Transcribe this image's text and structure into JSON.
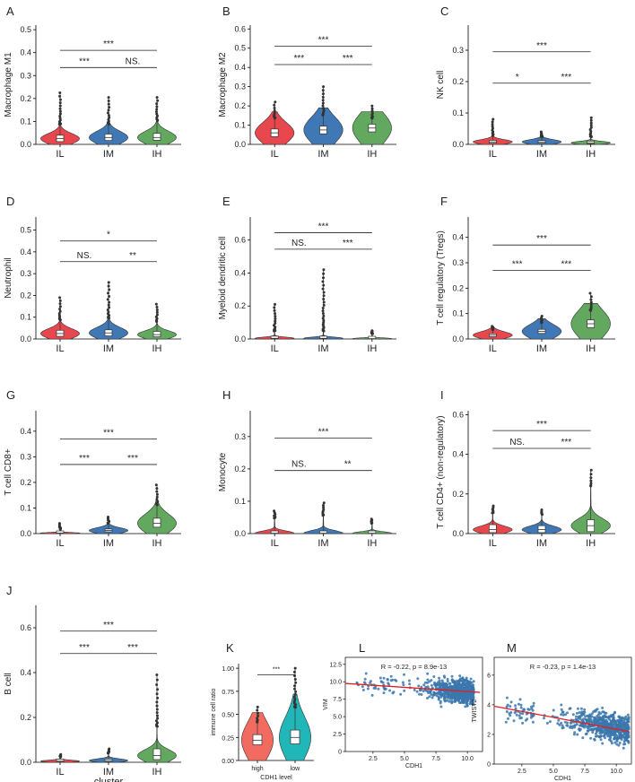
{
  "figure": {
    "panels": [
      {
        "letter": "A",
        "ylabel": "Macrophage M1"
      },
      {
        "letter": "B",
        "ylabel": "Macrophage M2"
      },
      {
        "letter": "C",
        "ylabel": "NK cell"
      },
      {
        "letter": "D",
        "ylabel": "Neutrophil"
      },
      {
        "letter": "E",
        "ylabel": "Myeloid dendritic cell"
      },
      {
        "letter": "F",
        "ylabel": "T cell regulatory (Tregs)"
      },
      {
        "letter": "G",
        "ylabel": "T cell CD8+"
      },
      {
        "letter": "H",
        "ylabel": "Monocyte"
      },
      {
        "letter": "I",
        "ylabel": "T cell CD4+ (non-regulatory)"
      },
      {
        "letter": "J",
        "ylabel": "B cell"
      },
      {
        "letter": "K",
        "ylabel": "immune cell ratio"
      },
      {
        "letter": "L",
        "ylabel": "VIM"
      },
      {
        "letter": "M",
        "ylabel": "TWIST2"
      }
    ]
  },
  "colors": {
    "IL": "#e8474d",
    "IM": "#3f78b4",
    "IH": "#63a85f",
    "high": "#f26b61",
    "low": "#21b6b8",
    "scatter": "#3a77ad",
    "fit": "#e02020"
  },
  "chart_data": [
    {
      "type": "violin",
      "panel": "A",
      "ylabel": "Macrophage M1",
      "xlabel": "",
      "categories": [
        "IL",
        "IM",
        "IH"
      ],
      "ylim": [
        0,
        0.52
      ],
      "yticks": [
        0,
        0.1,
        0.2,
        0.3,
        0.4,
        0.5
      ],
      "ytick_labels": [
        "0.0",
        "0.1",
        "0.2",
        "0.3",
        "0.4",
        "0.5"
      ],
      "medians": [
        0.025,
        0.03,
        0.03
      ],
      "q1": [
        0.012,
        0.017,
        0.018
      ],
      "q3": [
        0.04,
        0.045,
        0.048
      ],
      "maxima": [
        0.225,
        0.205,
        0.205
      ],
      "violin_max": [
        0.11,
        0.11,
        0.13
      ],
      "comparisons": [
        {
          "from": 0,
          "to": 2,
          "label": "***",
          "y": 0.41
        },
        {
          "from": 0,
          "to": 1,
          "label": "***",
          "y": 0.335
        },
        {
          "from": 1,
          "to": 2,
          "label": "NS.",
          "y": 0.335
        }
      ]
    },
    {
      "type": "violin",
      "panel": "B",
      "ylabel": "Macrophage M2",
      "xlabel": "",
      "categories": [
        "IL",
        "IM",
        "IH"
      ],
      "ylim": [
        0,
        0.62
      ],
      "yticks": [
        0,
        0.1,
        0.2,
        0.3,
        0.4,
        0.5,
        0.6
      ],
      "ytick_labels": [
        "0.0",
        "0.1",
        "0.2",
        "0.3",
        "0.4",
        "0.5",
        "0.6"
      ],
      "medians": [
        0.06,
        0.075,
        0.085
      ],
      "q1": [
        0.04,
        0.055,
        0.065
      ],
      "q3": [
        0.08,
        0.095,
        0.105
      ],
      "maxima": [
        0.22,
        0.3,
        0.2
      ],
      "violin_max": [
        0.17,
        0.19,
        0.17
      ],
      "comparisons": [
        {
          "from": 0,
          "to": 2,
          "label": "***",
          "y": 0.51
        },
        {
          "from": 0,
          "to": 1,
          "label": "***",
          "y": 0.415
        },
        {
          "from": 1,
          "to": 2,
          "label": "***",
          "y": 0.415
        }
      ]
    },
    {
      "type": "violin",
      "panel": "C",
      "ylabel": "NK cell",
      "xlabel": "",
      "categories": [
        "IL",
        "IM",
        "IH"
      ],
      "ylim": [
        0,
        0.38
      ],
      "yticks": [
        0,
        0.1,
        0.2,
        0.3
      ],
      "ytick_labels": [
        "0.0",
        "0.1",
        "0.2",
        "0.3"
      ],
      "medians": [
        0.008,
        0.008,
        0.005
      ],
      "q1": [
        0.004,
        0.004,
        0.002
      ],
      "q3": [
        0.013,
        0.012,
        0.009
      ],
      "maxima": [
        0.08,
        0.04,
        0.085
      ],
      "violin_max": [
        0.035,
        0.03,
        0.03
      ],
      "comparisons": [
        {
          "from": 0,
          "to": 2,
          "label": "***",
          "y": 0.295
        },
        {
          "from": 0,
          "to": 1,
          "label": "*",
          "y": 0.195
        },
        {
          "from": 1,
          "to": 2,
          "label": "***",
          "y": 0.195
        }
      ]
    },
    {
      "type": "violin",
      "panel": "D",
      "ylabel": "Neutrophil",
      "xlabel": "",
      "categories": [
        "IL",
        "IM",
        "IH"
      ],
      "ylim": [
        0,
        0.56
      ],
      "yticks": [
        0,
        0.1,
        0.2,
        0.3,
        0.4,
        0.5
      ],
      "ytick_labels": [
        "0.0",
        "0.1",
        "0.2",
        "0.3",
        "0.4",
        "0.5"
      ],
      "medians": [
        0.025,
        0.028,
        0.02
      ],
      "q1": [
        0.012,
        0.014,
        0.01
      ],
      "q3": [
        0.04,
        0.042,
        0.035
      ],
      "maxima": [
        0.19,
        0.26,
        0.16
      ],
      "violin_max": [
        0.11,
        0.12,
        0.1
      ],
      "comparisons": [
        {
          "from": 0,
          "to": 2,
          "label": "*",
          "y": 0.45
        },
        {
          "from": 0,
          "to": 1,
          "label": "NS.",
          "y": 0.355
        },
        {
          "from": 1,
          "to": 2,
          "label": "**",
          "y": 0.355
        }
      ]
    },
    {
      "type": "violin",
      "panel": "E",
      "ylabel": "Myeloid dendritic cell",
      "xlabel": "",
      "categories": [
        "IL",
        "IM",
        "IH"
      ],
      "ylim": [
        0,
        0.74
      ],
      "yticks": [
        0,
        0.2,
        0.4,
        0.6
      ],
      "ytick_labels": [
        "0.0",
        "0.2",
        "0.4",
        "0.6"
      ],
      "medians": [
        0.004,
        0.004,
        0.002
      ],
      "q1": [
        0.001,
        0.001,
        0.0
      ],
      "q3": [
        0.01,
        0.01,
        0.006
      ],
      "maxima": [
        0.21,
        0.42,
        0.05
      ],
      "violin_max": [
        0.06,
        0.06,
        0.04
      ],
      "comparisons": [
        {
          "from": 0,
          "to": 2,
          "label": "***",
          "y": 0.645
        },
        {
          "from": 0,
          "to": 1,
          "label": "NS.",
          "y": 0.545
        },
        {
          "from": 1,
          "to": 2,
          "label": "***",
          "y": 0.545
        }
      ]
    },
    {
      "type": "violin",
      "panel": "F",
      "ylabel": "T cell regulatory (Tregs)",
      "xlabel": "",
      "categories": [
        "IL",
        "IM",
        "IH"
      ],
      "ylim": [
        0,
        0.48
      ],
      "yticks": [
        0,
        0.1,
        0.2,
        0.3,
        0.4
      ],
      "ytick_labels": [
        "0.0",
        "0.1",
        "0.2",
        "0.3",
        "0.4"
      ],
      "medians": [
        0.015,
        0.03,
        0.06
      ],
      "q1": [
        0.009,
        0.022,
        0.045
      ],
      "q3": [
        0.021,
        0.038,
        0.075
      ],
      "maxima": [
        0.05,
        0.09,
        0.18
      ],
      "violin_max": [
        0.045,
        0.08,
        0.14
      ],
      "comparisons": [
        {
          "from": 0,
          "to": 2,
          "label": "***",
          "y": 0.37
        },
        {
          "from": 0,
          "to": 1,
          "label": "***",
          "y": 0.27
        },
        {
          "from": 1,
          "to": 2,
          "label": "***",
          "y": 0.27
        }
      ]
    },
    {
      "type": "violin",
      "panel": "G",
      "ylabel": "T cell CD8+",
      "xlabel": "",
      "categories": [
        "IL",
        "IM",
        "IH"
      ],
      "ylim": [
        0,
        0.48
      ],
      "yticks": [
        0,
        0.1,
        0.2,
        0.3,
        0.4
      ],
      "ytick_labels": [
        "0.0",
        "0.1",
        "0.2",
        "0.3",
        "0.4"
      ],
      "medians": [
        0.002,
        0.012,
        0.04
      ],
      "q1": [
        0.0,
        0.007,
        0.025
      ],
      "q3": [
        0.005,
        0.018,
        0.06
      ],
      "maxima": [
        0.04,
        0.065,
        0.19
      ],
      "violin_max": [
        0.02,
        0.05,
        0.14
      ],
      "comparisons": [
        {
          "from": 0,
          "to": 2,
          "label": "***",
          "y": 0.37
        },
        {
          "from": 0,
          "to": 1,
          "label": "***",
          "y": 0.27
        },
        {
          "from": 1,
          "to": 2,
          "label": "***",
          "y": 0.27
        }
      ]
    },
    {
      "type": "violin",
      "panel": "H",
      "ylabel": "Monocyte",
      "xlabel": "",
      "categories": [
        "IL",
        "IM",
        "IH"
      ],
      "ylim": [
        0,
        0.38
      ],
      "yticks": [
        0,
        0.1,
        0.2,
        0.3
      ],
      "ytick_labels": [
        "0.0",
        "0.1",
        "0.2",
        "0.3"
      ],
      "medians": [
        0.001,
        0.001,
        0.001
      ],
      "q1": [
        0.0,
        0.0,
        0.0
      ],
      "q3": [
        0.003,
        0.003,
        0.003
      ],
      "maxima": [
        0.07,
        0.095,
        0.045
      ],
      "violin_max": [
        0.06,
        0.07,
        0.04
      ],
      "comparisons": [
        {
          "from": 0,
          "to": 2,
          "label": "***",
          "y": 0.295
        },
        {
          "from": 0,
          "to": 1,
          "label": "NS.",
          "y": 0.195
        },
        {
          "from": 1,
          "to": 2,
          "label": "**",
          "y": 0.195
        }
      ]
    },
    {
      "type": "violin",
      "panel": "I",
      "ylabel": "T cell CD4+ (non-regulatory)",
      "xlabel": "",
      "categories": [
        "IL",
        "IM",
        "IH"
      ],
      "ylim": [
        0,
        0.62
      ],
      "yticks": [
        0,
        0.2,
        0.4,
        0.6
      ],
      "ytick_labels": [
        "0.0",
        "0.2",
        "0.4",
        "0.6"
      ],
      "medians": [
        0.02,
        0.02,
        0.04
      ],
      "q1": [
        0.005,
        0.005,
        0.01
      ],
      "q3": [
        0.045,
        0.04,
        0.07
      ],
      "maxima": [
        0.14,
        0.12,
        0.32
      ],
      "violin_max": [
        0.13,
        0.12,
        0.3
      ],
      "comparisons": [
        {
          "from": 0,
          "to": 2,
          "label": "***",
          "y": 0.52
        },
        {
          "from": 0,
          "to": 1,
          "label": "NS.",
          "y": 0.43
        },
        {
          "from": 1,
          "to": 2,
          "label": "***",
          "y": 0.43
        }
      ]
    },
    {
      "type": "violin",
      "panel": "J",
      "ylabel": "B cell",
      "xlabel": "cluster",
      "categories": [
        "IL",
        "IM",
        "IH"
      ],
      "ylim": [
        0,
        0.7
      ],
      "yticks": [
        0,
        0.2,
        0.4,
        0.6
      ],
      "ytick_labels": [
        "0.0",
        "0.2",
        "0.4",
        "0.6"
      ],
      "medians": [
        0.005,
        0.008,
        0.03
      ],
      "q1": [
        0.002,
        0.003,
        0.012
      ],
      "q3": [
        0.01,
        0.015,
        0.06
      ],
      "maxima": [
        0.035,
        0.06,
        0.39
      ],
      "violin_max": [
        0.03,
        0.05,
        0.2
      ],
      "comparisons": [
        {
          "from": 0,
          "to": 2,
          "label": "***",
          "y": 0.585
        },
        {
          "from": 0,
          "to": 1,
          "label": "***",
          "y": 0.485
        },
        {
          "from": 1,
          "to": 2,
          "label": "***",
          "y": 0.485
        }
      ]
    },
    {
      "type": "violin",
      "panel": "K",
      "ylabel": "immune cell ratio",
      "xlabel": "CDH1 level",
      "categories": [
        "high",
        "low"
      ],
      "ylim": [
        0,
        1.05
      ],
      "yticks": [
        0,
        0.25,
        0.5,
        0.75,
        1.0
      ],
      "ytick_labels": [
        "0.00",
        "0.25",
        "0.50",
        "0.75",
        "1.00"
      ],
      "medians": [
        0.22,
        0.25
      ],
      "q1": [
        0.17,
        0.18
      ],
      "q3": [
        0.28,
        0.33
      ],
      "maxima": [
        0.58,
        1.0
      ],
      "violin_max": [
        0.52,
        0.72
      ],
      "comparisons": [
        {
          "from": 0,
          "to": 1,
          "label": "***",
          "y": 0.93
        }
      ]
    },
    {
      "type": "scatter",
      "panel": "L",
      "xlabel": "CDH1",
      "ylabel": "VIM",
      "annotation": "R = -0.22, p = 8.9e-13",
      "xlim": [
        0.3,
        11.2
      ],
      "ylim": [
        0,
        13.5
      ],
      "xticks": [
        2.5,
        5.0,
        7.5,
        10.0
      ],
      "xtick_labels": [
        "2.5",
        "5.0",
        "7.5",
        "10.0"
      ],
      "yticks": [
        0,
        2.5,
        5.0,
        7.5,
        10.0,
        12.5
      ],
      "ytick_labels": [
        "0",
        "2.5",
        "5.0",
        "7.5",
        "10.0",
        "12.5"
      ],
      "x_range_cloud": [
        5,
        10.5
      ],
      "y_center": 8.8,
      "fit": {
        "slope": -0.12,
        "intercept": 9.8,
        "x": [
          0.3,
          11.0
        ]
      }
    },
    {
      "type": "scatter",
      "panel": "M",
      "xlabel": "CDH1",
      "ylabel": "TWIST2",
      "annotation": "R = -0.23, p = 1.4e-13",
      "xlim": [
        0.3,
        11.2
      ],
      "ylim": [
        0,
        7.2
      ],
      "xticks": [
        2.5,
        5.0,
        7.5,
        10.0
      ],
      "xtick_labels": [
        "2.5",
        "5.0",
        "7.5",
        "10.0"
      ],
      "yticks": [
        0,
        2,
        4,
        6
      ],
      "ytick_labels": [
        "0",
        "2",
        "4",
        "6"
      ],
      "x_range_cloud": [
        3.5,
        11
      ],
      "y_center": 2.8,
      "fit": {
        "slope": -0.16,
        "intercept": 3.95,
        "x": [
          0.3,
          11.0
        ]
      }
    }
  ]
}
